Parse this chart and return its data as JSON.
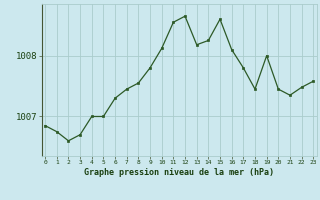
{
  "x": [
    0,
    1,
    2,
    3,
    4,
    5,
    6,
    7,
    8,
    9,
    10,
    11,
    12,
    13,
    14,
    15,
    16,
    17,
    18,
    19,
    20,
    21,
    22,
    23
  ],
  "y": [
    1006.85,
    1006.75,
    1006.6,
    1006.7,
    1007.0,
    1007.0,
    1007.3,
    1007.45,
    1007.55,
    1007.8,
    1008.12,
    1008.55,
    1008.65,
    1008.18,
    1008.25,
    1008.6,
    1008.1,
    1007.8,
    1007.45,
    1008.0,
    1007.45,
    1007.35,
    1007.48,
    1007.58
  ],
  "line_color": "#2d5a27",
  "marker_color": "#2d5a27",
  "bg_color": "#cce8ee",
  "grid_color": "#aacccc",
  "axis_label_color": "#1a4010",
  "xlabel": "Graphe pression niveau de la mer (hPa)",
  "ytick_labels": [
    "1007",
    "1008"
  ],
  "ytick_values": [
    1007,
    1008
  ],
  "ylim": [
    1006.35,
    1008.85
  ],
  "xlim": [
    -0.3,
    23.3
  ],
  "figsize": [
    3.2,
    2.0
  ],
  "dpi": 100
}
